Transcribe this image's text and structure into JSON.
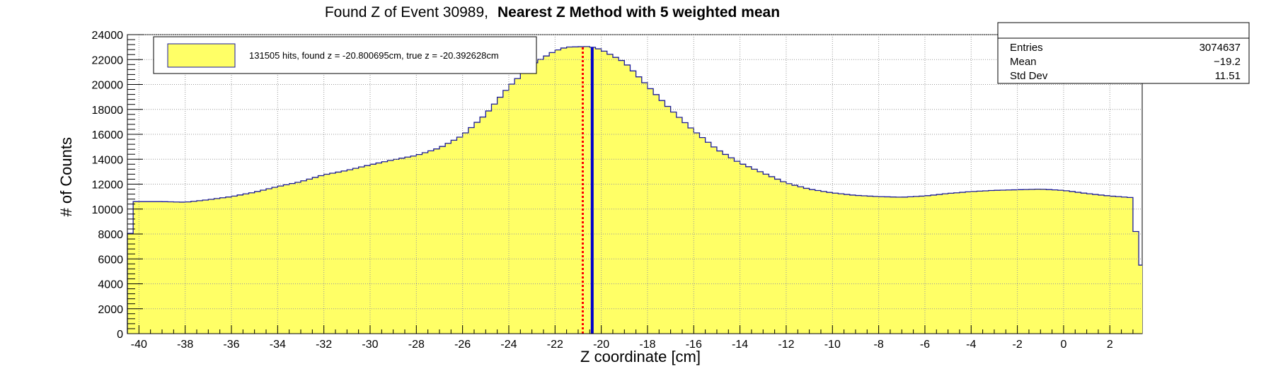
{
  "title": {
    "normal": "Found Z of Event 30989,",
    "bold": "Nearest Z Method with 5 weighted mean"
  },
  "stats": {
    "rows": [
      {
        "label": "Entries",
        "value": "3074637"
      },
      {
        "label": "Mean",
        "value": "−19.2"
      },
      {
        "label": "Std Dev",
        "value": "11.51"
      }
    ]
  },
  "legend": {
    "text": "131505 hits, found z = -20.800695cm, true z = -20.392628cm"
  },
  "colors": {
    "fill": "#ffff66",
    "outline": "#1a1a99",
    "true_line": "#0000cc",
    "found_line": "#ff0000"
  },
  "chart_data": {
    "type": "histogram",
    "xlabel": "Z coordinate [cm]",
    "ylabel": "# of Counts",
    "xlim": [
      -40.5,
      3.4
    ],
    "ylim": [
      0,
      24000
    ],
    "grid": true,
    "x_ticks": [
      -40,
      -38,
      -36,
      -34,
      -32,
      -30,
      -28,
      -26,
      -24,
      -22,
      -20,
      -18,
      -16,
      -14,
      -12,
      -10,
      -8,
      -6,
      -4,
      -2,
      0,
      2
    ],
    "y_ticks": [
      0,
      2000,
      4000,
      6000,
      8000,
      10000,
      12000,
      14000,
      16000,
      18000,
      20000,
      22000,
      24000
    ],
    "bin_width": 0.25,
    "shape_points": [
      [
        -40.5,
        5500
      ],
      [
        -40.25,
        10600
      ],
      [
        -39,
        10600
      ],
      [
        -38,
        10550
      ],
      [
        -37,
        10750
      ],
      [
        -36,
        11000
      ],
      [
        -35,
        11350
      ],
      [
        -34,
        11800
      ],
      [
        -33,
        12200
      ],
      [
        -32,
        12750
      ],
      [
        -31,
        13100
      ],
      [
        -30,
        13550
      ],
      [
        -29,
        13950
      ],
      [
        -28,
        14300
      ],
      [
        -27,
        14900
      ],
      [
        -26,
        15900
      ],
      [
        -25,
        17600
      ],
      [
        -24,
        19800
      ],
      [
        -23,
        21600
      ],
      [
        -22,
        22700
      ],
      [
        -21.5,
        23000
      ],
      [
        -20.5,
        23050
      ],
      [
        -20,
        22800
      ],
      [
        -19,
        21800
      ],
      [
        -18,
        19900
      ],
      [
        -17,
        18000
      ],
      [
        -16,
        16300
      ],
      [
        -15,
        14800
      ],
      [
        -14,
        13700
      ],
      [
        -13,
        12900
      ],
      [
        -12,
        12100
      ],
      [
        -11,
        11600
      ],
      [
        -10,
        11300
      ],
      [
        -9,
        11100
      ],
      [
        -8,
        11000
      ],
      [
        -7,
        10950
      ],
      [
        -6,
        11050
      ],
      [
        -5,
        11250
      ],
      [
        -4,
        11400
      ],
      [
        -3,
        11500
      ],
      [
        -2,
        11550
      ],
      [
        -1,
        11600
      ],
      [
        0,
        11500
      ],
      [
        1,
        11250
      ],
      [
        2,
        11050
      ],
      [
        3.1,
        10900
      ],
      [
        3.15,
        5500
      ],
      [
        3.4,
        5500
      ]
    ],
    "markers": [
      {
        "name": "found z",
        "x": -20.800695,
        "style": "dotted",
        "color": "#ff0000"
      },
      {
        "name": "true z",
        "x": -20.392628,
        "style": "solid",
        "color": "#0000cc"
      }
    ]
  }
}
